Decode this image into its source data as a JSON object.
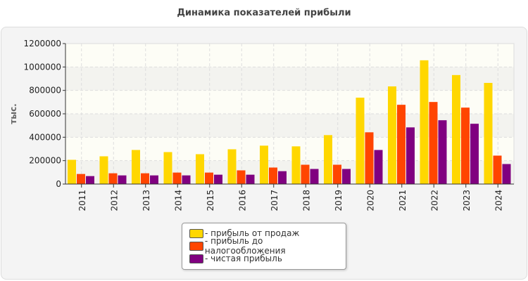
{
  "chart_data": {
    "type": "bar",
    "title": "Динамика показателей прибыли",
    "ylabel": "тыс.",
    "xlabel": "",
    "ylim": [
      0,
      1200000
    ],
    "yticks": [
      "0",
      "200000",
      "400000",
      "600000",
      "800000",
      "1000000",
      "1200000"
    ],
    "grid": true,
    "legend_position": "bottom",
    "categories": [
      "2011",
      "2012",
      "2013",
      "2014",
      "2015",
      "2016",
      "2017",
      "2018",
      "2019",
      "2020",
      "2021",
      "2022",
      "2023",
      "2024"
    ],
    "series": [
      {
        "name": "- прибыль от продаж",
        "color": "#ffd700",
        "values": [
          207000,
          237000,
          291000,
          273000,
          255000,
          297000,
          328000,
          322000,
          418000,
          738000,
          834000,
          1057000,
          931000,
          864000
        ]
      },
      {
        "name": "- прибыль до налогообложения",
        "color": "#ff4500",
        "values": [
          86000,
          92000,
          92000,
          98000,
          98000,
          117000,
          141000,
          165000,
          165000,
          442000,
          677000,
          701000,
          653000,
          243000
        ]
      },
      {
        "name": "- чистая прибыль",
        "color": "#800080",
        "values": [
          68000,
          74000,
          74000,
          74000,
          80000,
          80000,
          110000,
          129000,
          129000,
          291000,
          484000,
          545000,
          515000,
          171000
        ]
      }
    ]
  }
}
